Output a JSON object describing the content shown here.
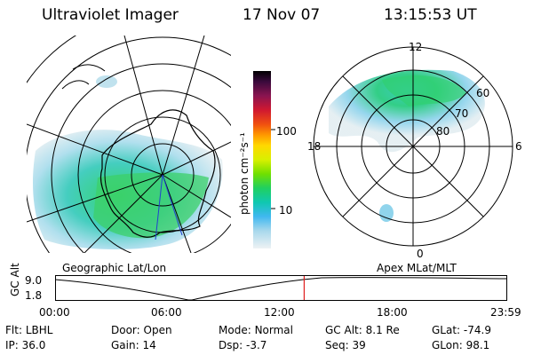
{
  "header": {
    "instrument": "Ultraviolet Imager",
    "date": "17 Nov 07",
    "time": "13:15:53 UT"
  },
  "left_panel": {
    "projection_label": "Geographic Lat/Lon"
  },
  "right_panel": {
    "projection_label": "Apex MLat/MLT",
    "mlt_labels": {
      "top": "12",
      "bottom": "0",
      "left": "18",
      "right": "6"
    },
    "lat_labels": [
      "60",
      "70",
      "80"
    ]
  },
  "colorbar": {
    "unit_label": "photon cm⁻²s⁻¹",
    "ticks": [
      "100",
      "10"
    ],
    "colors": [
      "#000000",
      "#2a0a32",
      "#5a1450",
      "#a0144a",
      "#e01a2a",
      "#ff6a00",
      "#ffb000",
      "#ffe000",
      "#c8f000",
      "#6ae000",
      "#20d060",
      "#10c8b0",
      "#30b8f0",
      "#90d4ec",
      "#c8e4ee",
      "#e8eef2"
    ]
  },
  "orbit_plot": {
    "ylabel": "GC Alt",
    "yticks": [
      "9.0",
      "1.8"
    ],
    "xticks": [
      "00:00",
      "06:00",
      "12:00",
      "18:00",
      "23:59"
    ],
    "current_time_fraction": 0.552
  },
  "info": {
    "row1": [
      {
        "label": "Flt:",
        "value": "LBHL"
      },
      {
        "label": "Door:",
        "value": "Open"
      },
      {
        "label": "Mode:",
        "value": "Normal"
      },
      {
        "label": "GC Alt:",
        "value": "8.1 Re"
      },
      {
        "label": "GLat:",
        "value": "-74.9"
      }
    ],
    "row2": [
      {
        "label": "IP:",
        "value": "36.0"
      },
      {
        "label": "Gain:",
        "value": "14"
      },
      {
        "label": "Dsp:",
        "value": "-3.7"
      },
      {
        "label": "Seq:",
        "value": "39"
      },
      {
        "label": "GLon:",
        "value": "98.1"
      }
    ]
  }
}
